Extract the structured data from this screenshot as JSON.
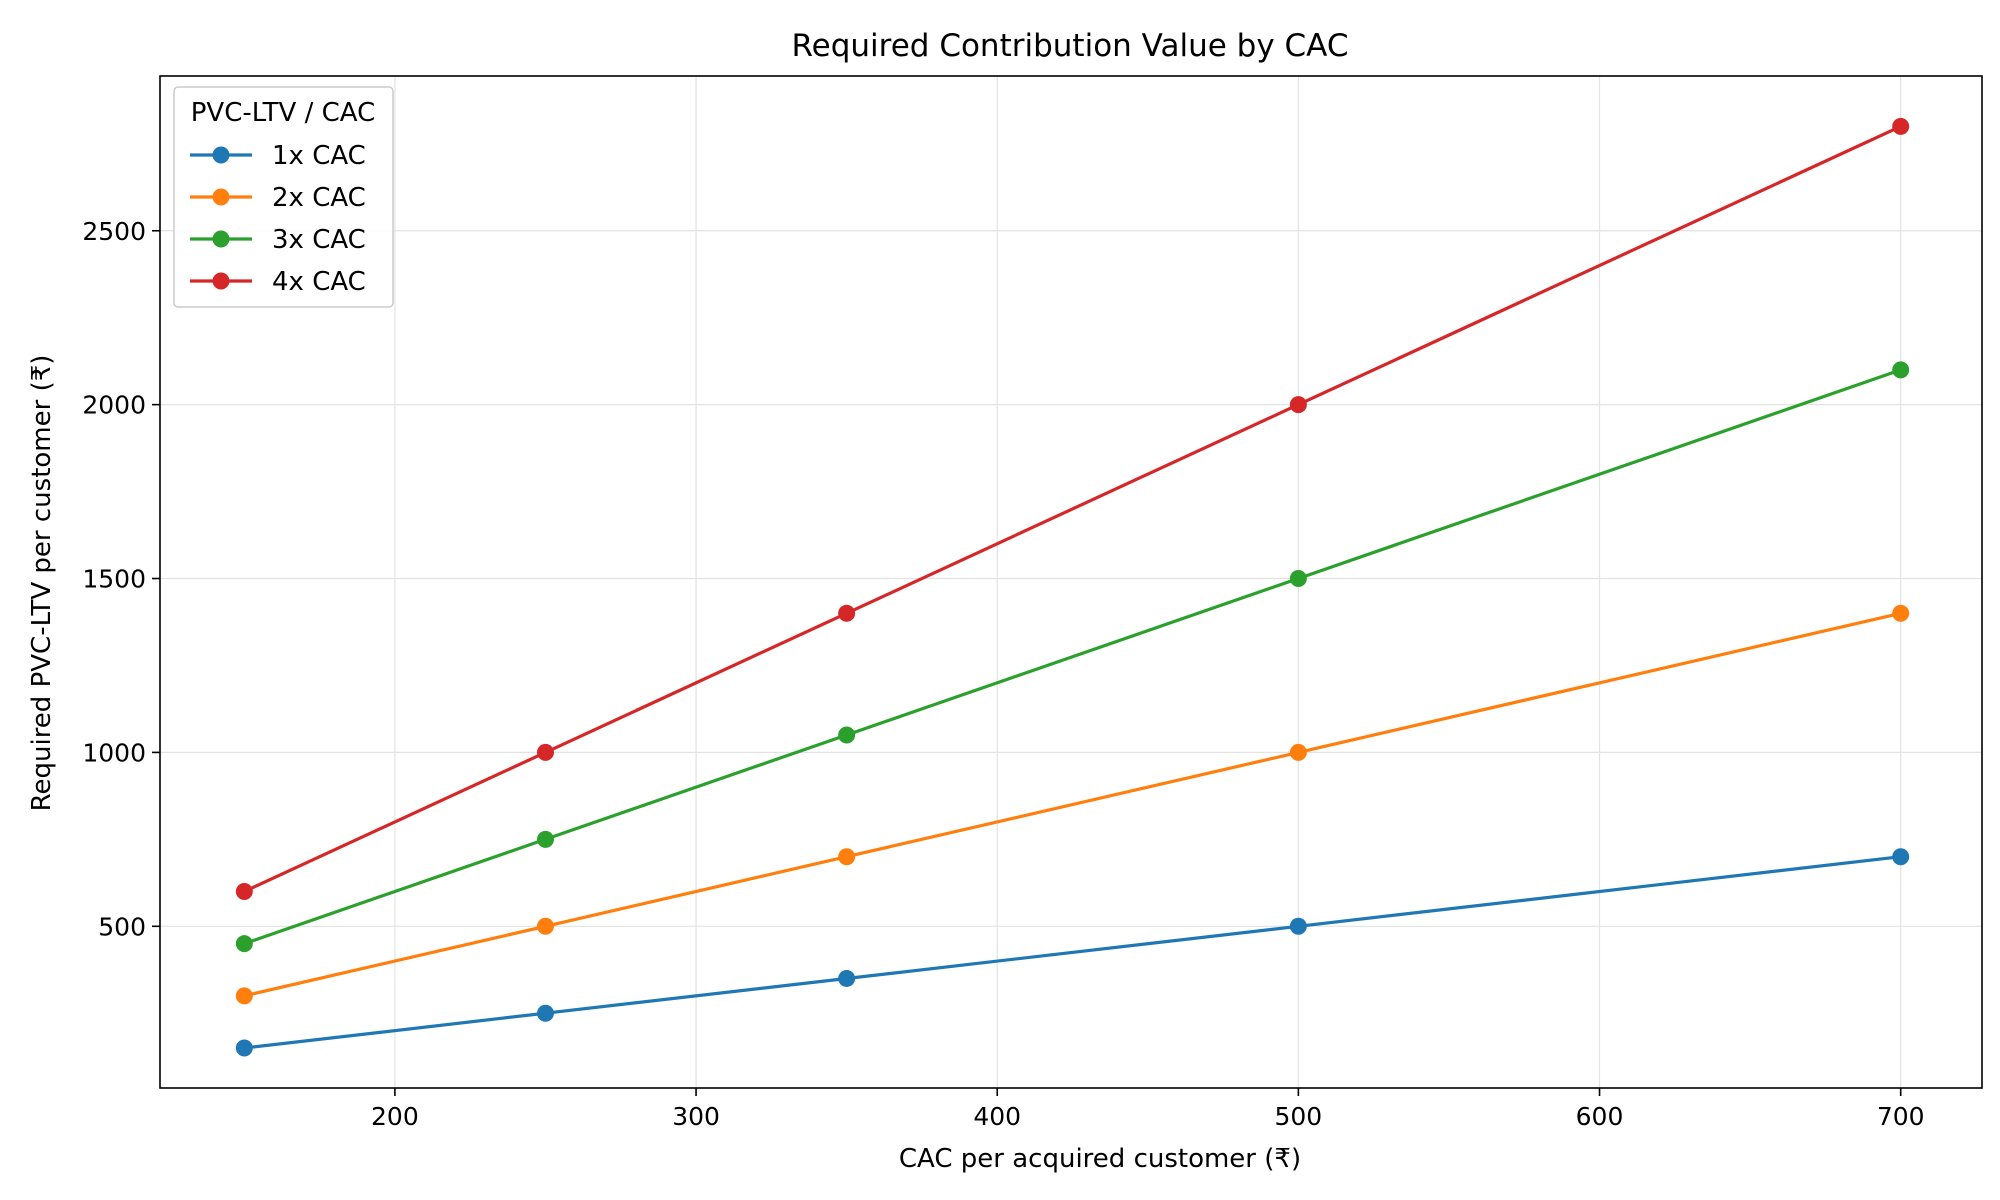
{
  "chart_data": {
    "type": "line",
    "title": "Required Contribution Value by CAC",
    "xlabel": "CAC per acquired customer (₹)",
    "ylabel": "Required PVC-LTV per customer (₹)",
    "x": [
      150,
      250,
      350,
      500,
      700
    ],
    "xlim": [
      122,
      727
    ],
    "ylim": [
      35,
      2945
    ],
    "xticks": [
      200,
      300,
      400,
      500,
      600,
      700
    ],
    "yticks": [
      500,
      1000,
      1500,
      2000,
      2500
    ],
    "grid": true,
    "legend": {
      "title": "PVC-LTV / CAC",
      "placement": "top-left"
    },
    "series": [
      {
        "name": "1x CAC",
        "color": "#1f77b4",
        "values": [
          150,
          250,
          350,
          500,
          700
        ]
      },
      {
        "name": "2x CAC",
        "color": "#ff7f0e",
        "values": [
          300,
          500,
          700,
          1000,
          1400
        ]
      },
      {
        "name": "3x CAC",
        "color": "#2ca02c",
        "values": [
          450,
          750,
          1050,
          1500,
          2100
        ]
      },
      {
        "name": "4x CAC",
        "color": "#d62728",
        "values": [
          600,
          1000,
          1400,
          2000,
          2800
        ]
      }
    ]
  }
}
